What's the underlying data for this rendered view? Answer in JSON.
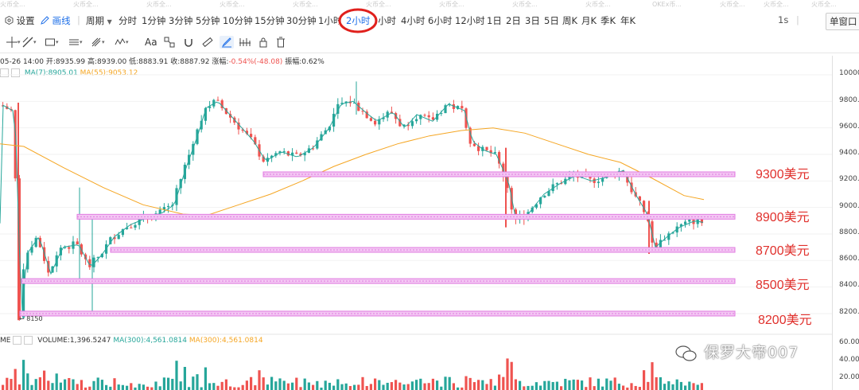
{
  "top_tabs": [
    "火币全...",
    "火币全...",
    "火币全...",
    "火币全...",
    "火币全...",
    "火币全...",
    "火币全...",
    "火币全...",
    "火币全...",
    "OKEx币...",
    "火币全...",
    "火币全...",
    "火币全..."
  ],
  "toolbar": {
    "settings": "设置",
    "draw": "画线",
    "period": "周期",
    "intervals": [
      "分时",
      "1分钟",
      "3分钟",
      "5分钟",
      "10分钟",
      "15分钟",
      "30分钟",
      "1小时",
      "2小时",
      "4小时",
      "6小时",
      "12小时",
      "1日",
      "2日",
      "3日",
      "5日",
      "周K",
      "月K",
      "季K",
      "年K"
    ],
    "active_interval": "2小时",
    "speed": "1s",
    "single_window": "单窗口"
  },
  "tools": {
    "text_tool": "Aa"
  },
  "info": {
    "datetime": "05-26 14:00",
    "open_label": "开:",
    "open": "8935.99",
    "high_label": "高:",
    "high": "8939.00",
    "low_label": "低:",
    "low": "8883.91",
    "close_label": "收:",
    "close": "8887.92",
    "change_label": "涨幅:",
    "change": "-0.54%(-48.08)",
    "amp_label": "振幅:",
    "amp": "0.62%"
  },
  "ma": {
    "ma7": "MA(7):8905.01",
    "ma55": "MA(55):9053.12"
  },
  "volume": {
    "prefix": "ME",
    "vol": "VOLUME:1,396.5247",
    "ma300a": "MA(300):4,561.0814",
    "ma300b": "MA(300):4,561.0814"
  },
  "price_axis": [
    "10000.00",
    "9800.00",
    "9600.00",
    "9400.00",
    "9200.00",
    "9000.00",
    "8800.00",
    "8600.00",
    "8400.00",
    "8200.00"
  ],
  "volume_axis": [
    "60.00",
    "40.00",
    "20.00"
  ],
  "low_marker": "← 8150",
  "levels": [
    "9300美元",
    "8900美元",
    "8700美元",
    "8500美元",
    "8200美元"
  ],
  "watermark": "保罗大帝007",
  "colors": {
    "up": "#26a69a",
    "down": "#ef5350",
    "ma7": "#26a69a",
    "ma55": "#f5a623",
    "level_line": "#e07be0",
    "label": "#e0302c",
    "active": "#1e6fe8",
    "annotation": "#e0201c"
  }
}
